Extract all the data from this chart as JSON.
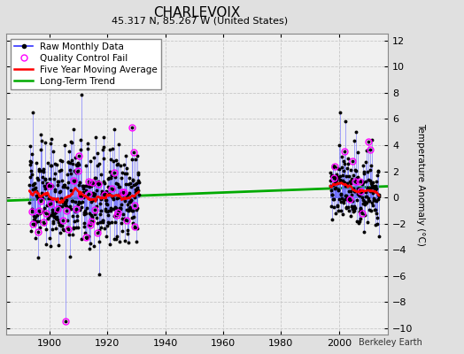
{
  "title": "CHARLEVOIX",
  "subtitle": "45.317 N, 85.267 W (United States)",
  "ylabel": "Temperature Anomaly (°C)",
  "credit": "Berkeley Earth",
  "ylim": [
    -10.5,
    12.5
  ],
  "xlim": [
    1885,
    2017
  ],
  "yticks": [
    -10,
    -8,
    -6,
    -4,
    -2,
    0,
    2,
    4,
    6,
    8,
    10,
    12
  ],
  "xticks": [
    1900,
    1920,
    1940,
    1960,
    1980,
    2000
  ],
  "bg_color": "#e0e0e0",
  "plot_bg_color": "#f0f0f0",
  "grid_color": "#c8c8c8",
  "early_start": 1893,
  "early_end": 1930,
  "late_start": 1997,
  "late_end": 2013,
  "trend_x": [
    1885,
    2017
  ],
  "trend_y": [
    -0.25,
    0.85
  ],
  "data_color": "#3333ff",
  "stem_color": "#6666ff",
  "marker_color": "#000000",
  "qc_color": "#ff00ff",
  "five_yr_color": "#ff0000",
  "trend_color": "#00aa00",
  "title_fontsize": 11,
  "subtitle_fontsize": 8,
  "legend_fontsize": 7.5,
  "tick_fontsize": 8
}
